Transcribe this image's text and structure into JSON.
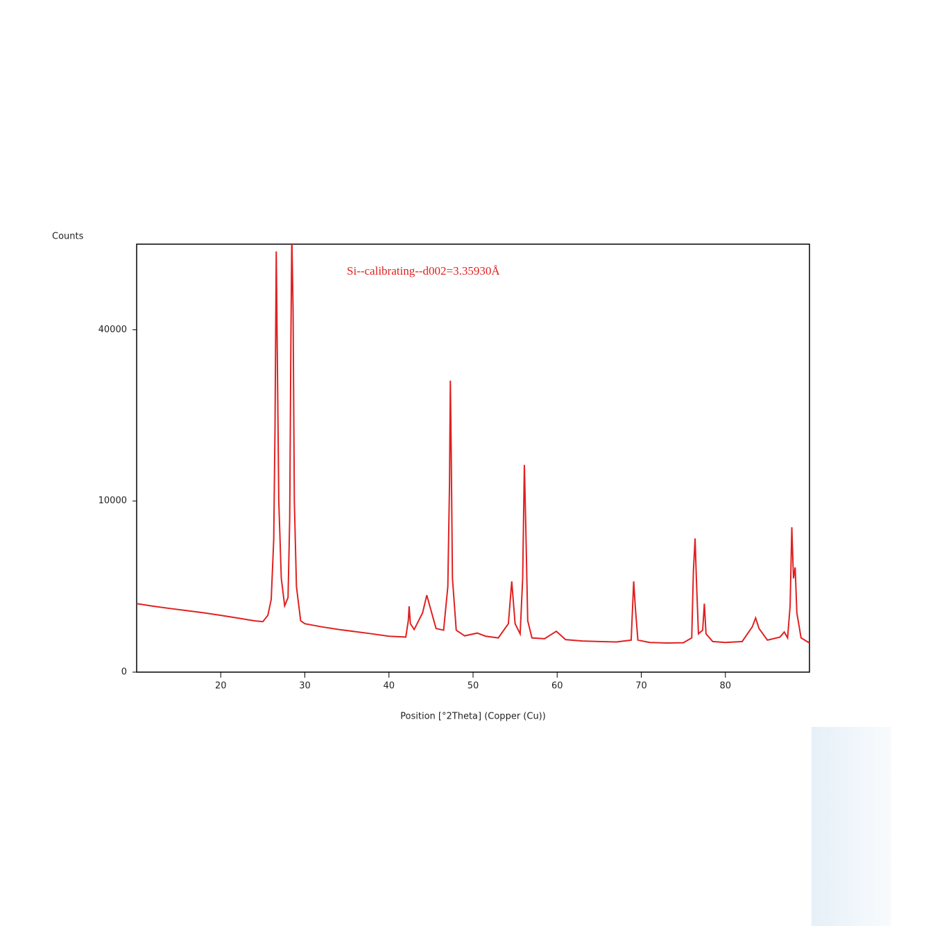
{
  "chart_data": {
    "type": "line",
    "title": "Si--calibrating--d002=3.35930Å",
    "y_label": "Counts",
    "x_label": "Position [°2Theta] (Copper (Cu))",
    "color": "#e02020",
    "y_scale": "sqrt",
    "xlim": [
      10,
      90
    ],
    "xticks": [
      20,
      30,
      40,
      50,
      60,
      70,
      80
    ],
    "ylim": [
      0,
      62500
    ],
    "yticks": [
      0,
      10000,
      40000
    ],
    "x": [
      10,
      12,
      14,
      16,
      18,
      20,
      22,
      24,
      25,
      25.6,
      26.0,
      26.3,
      26.45,
      26.6,
      26.75,
      26.9,
      27.2,
      27.6,
      28.0,
      28.2,
      28.35,
      28.45,
      28.6,
      28.75,
      29.0,
      29.5,
      30,
      32,
      34,
      36,
      38,
      40,
      42,
      42.3,
      42.4,
      42.55,
      43,
      44,
      44.5,
      45,
      45.6,
      46.5,
      47.0,
      47.2,
      47.3,
      47.4,
      47.55,
      48,
      49,
      50.5,
      51.5,
      53,
      54.2,
      54.6,
      55,
      55.6,
      55.9,
      56.1,
      56.25,
      56.5,
      57,
      58.5,
      59.9,
      61,
      63,
      65,
      67,
      68.8,
      69.1,
      69.3,
      69.6,
      71,
      73,
      75,
      76.0,
      76.2,
      76.4,
      76.55,
      76.8,
      77.3,
      77.5,
      77.7,
      78.5,
      80,
      82,
      83.2,
      83.6,
      84,
      85,
      86.5,
      87.0,
      87.4,
      87.7,
      87.9,
      88.1,
      88.3,
      88.5,
      89,
      90
    ],
    "values": [
      1600,
      1480,
      1380,
      1290,
      1200,
      1100,
      1000,
      900,
      870,
      1100,
      1800,
      6000,
      20000,
      60400,
      30000,
      10000,
      3000,
      1500,
      1900,
      8000,
      40000,
      65000,
      45000,
      10000,
      2500,
      900,
      800,
      700,
      620,
      560,
      500,
      440,
      420,
      900,
      1480,
      800,
      620,
      1200,
      2020,
      1300,
      650,
      600,
      2500,
      12000,
      29000,
      17000,
      3000,
      600,
      450,
      520,
      440,
      400,
      800,
      2810,
      800,
      500,
      3000,
      14650,
      8000,
      900,
      400,
      380,
      570,
      360,
      330,
      320,
      310,
      350,
      2810,
      1400,
      350,
      300,
      290,
      295,
      400,
      3500,
      6100,
      3000,
      500,
      600,
      1600,
      500,
      320,
      300,
      320,
      700,
      1000,
      650,
      350,
      420,
      550,
      400,
      1500,
      7160,
      3000,
      3740,
      1200,
      400,
      290
    ]
  }
}
